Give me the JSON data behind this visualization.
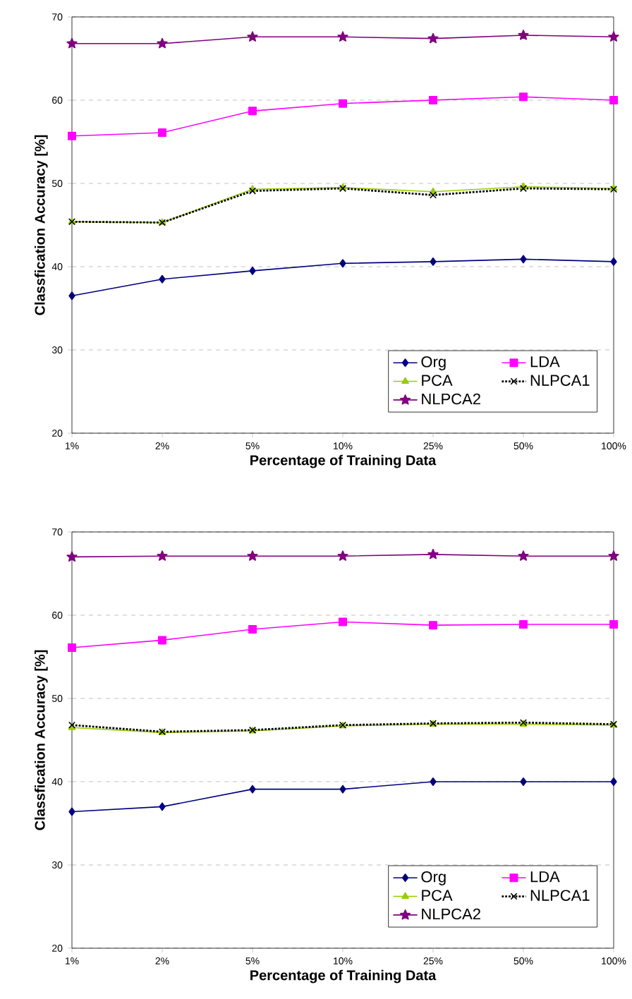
{
  "chart_data": [
    {
      "type": "line",
      "categories": [
        "1%",
        "2%",
        "5%",
        "10%",
        "25%",
        "50%",
        "100%"
      ],
      "xlabel": "Percentage of Training Data",
      "ylabel": "Classfication Accuracy [%]",
      "ylim": [
        20,
        70
      ],
      "yticks": [
        20,
        30,
        40,
        50,
        60,
        70
      ],
      "grid": "y",
      "legend": "bottom right",
      "series": [
        {
          "name": "Org",
          "color": "#000080",
          "marker": "diamond",
          "line_style": "solid",
          "values": [
            36.5,
            38.5,
            39.5,
            40.4,
            40.6,
            40.9,
            40.6
          ]
        },
        {
          "name": "LDA",
          "color": "#ff00ff",
          "marker": "square",
          "line_style": "solid",
          "values": [
            55.7,
            56.1,
            58.7,
            59.6,
            60.0,
            60.4,
            60.0
          ]
        },
        {
          "name": "PCA",
          "color": "#99cc00",
          "marker": "triangle",
          "line_style": "solid",
          "values": [
            45.4,
            45.3,
            49.3,
            49.5,
            49.0,
            49.6,
            49.4
          ]
        },
        {
          "name": "NLPCA1",
          "color": "#000000",
          "marker": "cross",
          "line_style": "dotted",
          "values": [
            45.4,
            45.3,
            49.1,
            49.4,
            48.6,
            49.4,
            49.3
          ]
        },
        {
          "name": "NLPCA2",
          "color": "#800080",
          "marker": "star",
          "line_style": "solid",
          "values": [
            66.8,
            66.8,
            67.6,
            67.6,
            67.4,
            67.8,
            67.6
          ]
        }
      ]
    },
    {
      "type": "line",
      "categories": [
        "1%",
        "2%",
        "5%",
        "10%",
        "25%",
        "50%",
        "100%"
      ],
      "xlabel": "Percentage of Training Data",
      "ylabel": "Classfication Accuracy [%]",
      "ylim": [
        20,
        70
      ],
      "yticks": [
        20,
        30,
        40,
        50,
        60,
        70
      ],
      "grid": "y",
      "legend": "bottom right",
      "series": [
        {
          "name": "Org",
          "color": "#000080",
          "marker": "diamond",
          "line_style": "solid",
          "values": [
            36.4,
            37.0,
            39.1,
            39.1,
            40.0,
            40.0,
            40.0
          ]
        },
        {
          "name": "LDA",
          "color": "#ff00ff",
          "marker": "square",
          "line_style": "solid",
          "values": [
            56.1,
            57.0,
            58.3,
            59.2,
            58.8,
            58.9,
            58.9
          ]
        },
        {
          "name": "PCA",
          "color": "#99cc00",
          "marker": "triangle",
          "line_style": "solid",
          "values": [
            46.5,
            45.9,
            46.1,
            46.7,
            46.9,
            46.9,
            46.8
          ]
        },
        {
          "name": "NLPCA1",
          "color": "#000000",
          "marker": "cross",
          "line_style": "dotted",
          "values": [
            46.8,
            46.0,
            46.2,
            46.8,
            47.0,
            47.1,
            46.9
          ]
        },
        {
          "name": "NLPCA2",
          "color": "#800080",
          "marker": "star",
          "line_style": "solid",
          "values": [
            67.0,
            67.1,
            67.1,
            67.1,
            67.3,
            67.1,
            67.1
          ]
        }
      ]
    }
  ]
}
